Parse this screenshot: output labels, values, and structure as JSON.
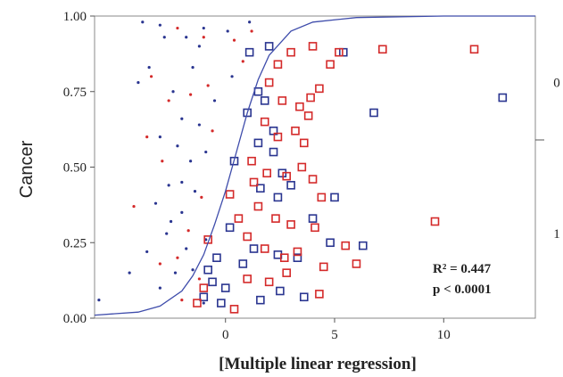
{
  "chart_data": {
    "type": "scatter",
    "title": "",
    "xlabel": "[Multiple linear regression]",
    "ylabel": "Cancer",
    "xlim": [
      -6,
      14.2
    ],
    "ylim": [
      0,
      1
    ],
    "x_ticks": [
      0,
      5,
      10
    ],
    "x_tick_labels": [
      "0",
      "5",
      "10"
    ],
    "y_ticks": [
      0,
      0.25,
      0.5,
      0.75,
      1.0
    ],
    "y_tick_labels": [
      "0.00",
      "0.25",
      "0.50",
      "0.75",
      "1.00"
    ],
    "right_labels": [
      {
        "text": "0",
        "y": 0.78
      },
      {
        "text": "1",
        "y": 0.28
      }
    ],
    "right_divider_y": 0.59,
    "annotations": [
      "R² = 0.447",
      "p < 0.0001"
    ],
    "colors": {
      "blue": "#2a3590",
      "red": "#d42a2a",
      "curve": "#3e4cab",
      "axis": "#888888"
    },
    "fit_curve": {
      "x": [
        -6,
        -4,
        -3,
        -2,
        -1.5,
        -1,
        -0.5,
        0,
        0.5,
        1,
        1.5,
        2,
        3,
        4,
        6,
        10,
        14.2
      ],
      "y": [
        0.01,
        0.02,
        0.04,
        0.09,
        0.14,
        0.21,
        0.31,
        0.42,
        0.55,
        0.68,
        0.79,
        0.87,
        0.95,
        0.98,
        0.995,
        1.0,
        1.0
      ]
    },
    "series": [
      {
        "color": "blue",
        "marker": "dot",
        "points": [
          [
            -3.8,
            0.98
          ],
          [
            -3.0,
            0.97
          ],
          [
            -1.8,
            0.93
          ],
          [
            -1.0,
            0.96
          ],
          [
            0.1,
            0.95
          ],
          [
            1.1,
            0.98
          ],
          [
            -2.8,
            0.93
          ],
          [
            -1.2,
            0.9
          ],
          [
            -4.0,
            0.78
          ],
          [
            -3.5,
            0.83
          ],
          [
            -2.4,
            0.75
          ],
          [
            -1.5,
            0.83
          ],
          [
            -0.5,
            0.72
          ],
          [
            0.3,
            0.8
          ],
          [
            -2.0,
            0.66
          ],
          [
            -1.2,
            0.64
          ],
          [
            -3.0,
            0.6
          ],
          [
            -2.2,
            0.57
          ],
          [
            -1.6,
            0.52
          ],
          [
            -0.9,
            0.55
          ],
          [
            -2.6,
            0.44
          ],
          [
            -1.4,
            0.42
          ],
          [
            -3.2,
            0.38
          ],
          [
            -2.0,
            0.35
          ],
          [
            -2.7,
            0.28
          ],
          [
            -1.8,
            0.23
          ],
          [
            -0.9,
            0.26
          ],
          [
            -3.6,
            0.22
          ],
          [
            -2.3,
            0.15
          ],
          [
            -1.5,
            0.16
          ],
          [
            -4.4,
            0.15
          ],
          [
            -5.8,
            0.06
          ],
          [
            -3.0,
            0.1
          ],
          [
            -1.0,
            0.05
          ],
          [
            -2.0,
            0.45
          ],
          [
            -2.5,
            0.32
          ]
        ]
      },
      {
        "color": "red",
        "marker": "dot",
        "points": [
          [
            -2.2,
            0.96
          ],
          [
            -1.0,
            0.93
          ],
          [
            0.4,
            0.92
          ],
          [
            1.2,
            0.95
          ],
          [
            -3.4,
            0.8
          ],
          [
            -2.6,
            0.72
          ],
          [
            -1.6,
            0.74
          ],
          [
            -0.8,
            0.77
          ],
          [
            -3.6,
            0.6
          ],
          [
            -2.9,
            0.52
          ],
          [
            -1.1,
            0.4
          ],
          [
            -4.2,
            0.37
          ],
          [
            -1.7,
            0.29
          ],
          [
            -2.2,
            0.2
          ],
          [
            -3.0,
            0.18
          ],
          [
            -1.2,
            0.13
          ],
          [
            -2.0,
            0.06
          ],
          [
            0.8,
            0.85
          ],
          [
            -0.6,
            0.62
          ]
        ]
      },
      {
        "color": "blue",
        "marker": "square",
        "points": [
          [
            1.5,
            0.75
          ],
          [
            1.8,
            0.72
          ],
          [
            2.2,
            0.62
          ],
          [
            1.0,
            0.68
          ],
          [
            1.5,
            0.58
          ],
          [
            2.2,
            0.55
          ],
          [
            2.6,
            0.48
          ],
          [
            1.6,
            0.43
          ],
          [
            2.4,
            0.4
          ],
          [
            0.4,
            0.52
          ],
          [
            0.2,
            0.3
          ],
          [
            -0.4,
            0.2
          ],
          [
            -0.6,
            0.12
          ],
          [
            -1.0,
            0.07
          ],
          [
            0.8,
            0.18
          ],
          [
            1.3,
            0.23
          ],
          [
            2.4,
            0.21
          ],
          [
            3.3,
            0.2
          ],
          [
            3.6,
            0.07
          ],
          [
            4.0,
            0.33
          ],
          [
            5.0,
            0.4
          ],
          [
            5.4,
            0.88
          ],
          [
            6.8,
            0.68
          ],
          [
            12.7,
            0.73
          ],
          [
            6.3,
            0.24
          ],
          [
            2.5,
            0.09
          ],
          [
            1.6,
            0.06
          ],
          [
            -0.8,
            0.16
          ],
          [
            0.0,
            0.1
          ],
          [
            3.0,
            0.44
          ],
          [
            4.8,
            0.25
          ],
          [
            1.1,
            0.88
          ],
          [
            -0.2,
            0.05
          ],
          [
            2.0,
            0.9
          ]
        ]
      },
      {
        "color": "red",
        "marker": "square",
        "points": [
          [
            3.0,
            0.88
          ],
          [
            4.0,
            0.9
          ],
          [
            4.8,
            0.84
          ],
          [
            5.2,
            0.88
          ],
          [
            7.2,
            0.89
          ],
          [
            11.4,
            0.89
          ],
          [
            2.0,
            0.78
          ],
          [
            2.6,
            0.72
          ],
          [
            3.4,
            0.7
          ],
          [
            3.9,
            0.73
          ],
          [
            4.3,
            0.76
          ],
          [
            1.8,
            0.65
          ],
          [
            2.4,
            0.6
          ],
          [
            3.2,
            0.62
          ],
          [
            3.6,
            0.58
          ],
          [
            1.2,
            0.52
          ],
          [
            1.9,
            0.48
          ],
          [
            2.8,
            0.47
          ],
          [
            3.5,
            0.5
          ],
          [
            4.0,
            0.46
          ],
          [
            4.4,
            0.4
          ],
          [
            1.5,
            0.37
          ],
          [
            2.3,
            0.33
          ],
          [
            3.0,
            0.31
          ],
          [
            4.1,
            0.3
          ],
          [
            1.0,
            0.27
          ],
          [
            1.8,
            0.23
          ],
          [
            2.7,
            0.2
          ],
          [
            3.3,
            0.22
          ],
          [
            4.5,
            0.17
          ],
          [
            5.5,
            0.24
          ],
          [
            0.6,
            0.33
          ],
          [
            0.2,
            0.41
          ],
          [
            -0.8,
            0.26
          ],
          [
            -1.0,
            0.1
          ],
          [
            -1.3,
            0.05
          ],
          [
            0.4,
            0.03
          ],
          [
            2.0,
            0.12
          ],
          [
            2.8,
            0.15
          ],
          [
            4.3,
            0.08
          ],
          [
            9.6,
            0.32
          ],
          [
            6.0,
            0.18
          ],
          [
            1.3,
            0.45
          ],
          [
            3.8,
            0.67
          ],
          [
            1.0,
            0.13
          ],
          [
            2.4,
            0.84
          ]
        ]
      }
    ]
  }
}
